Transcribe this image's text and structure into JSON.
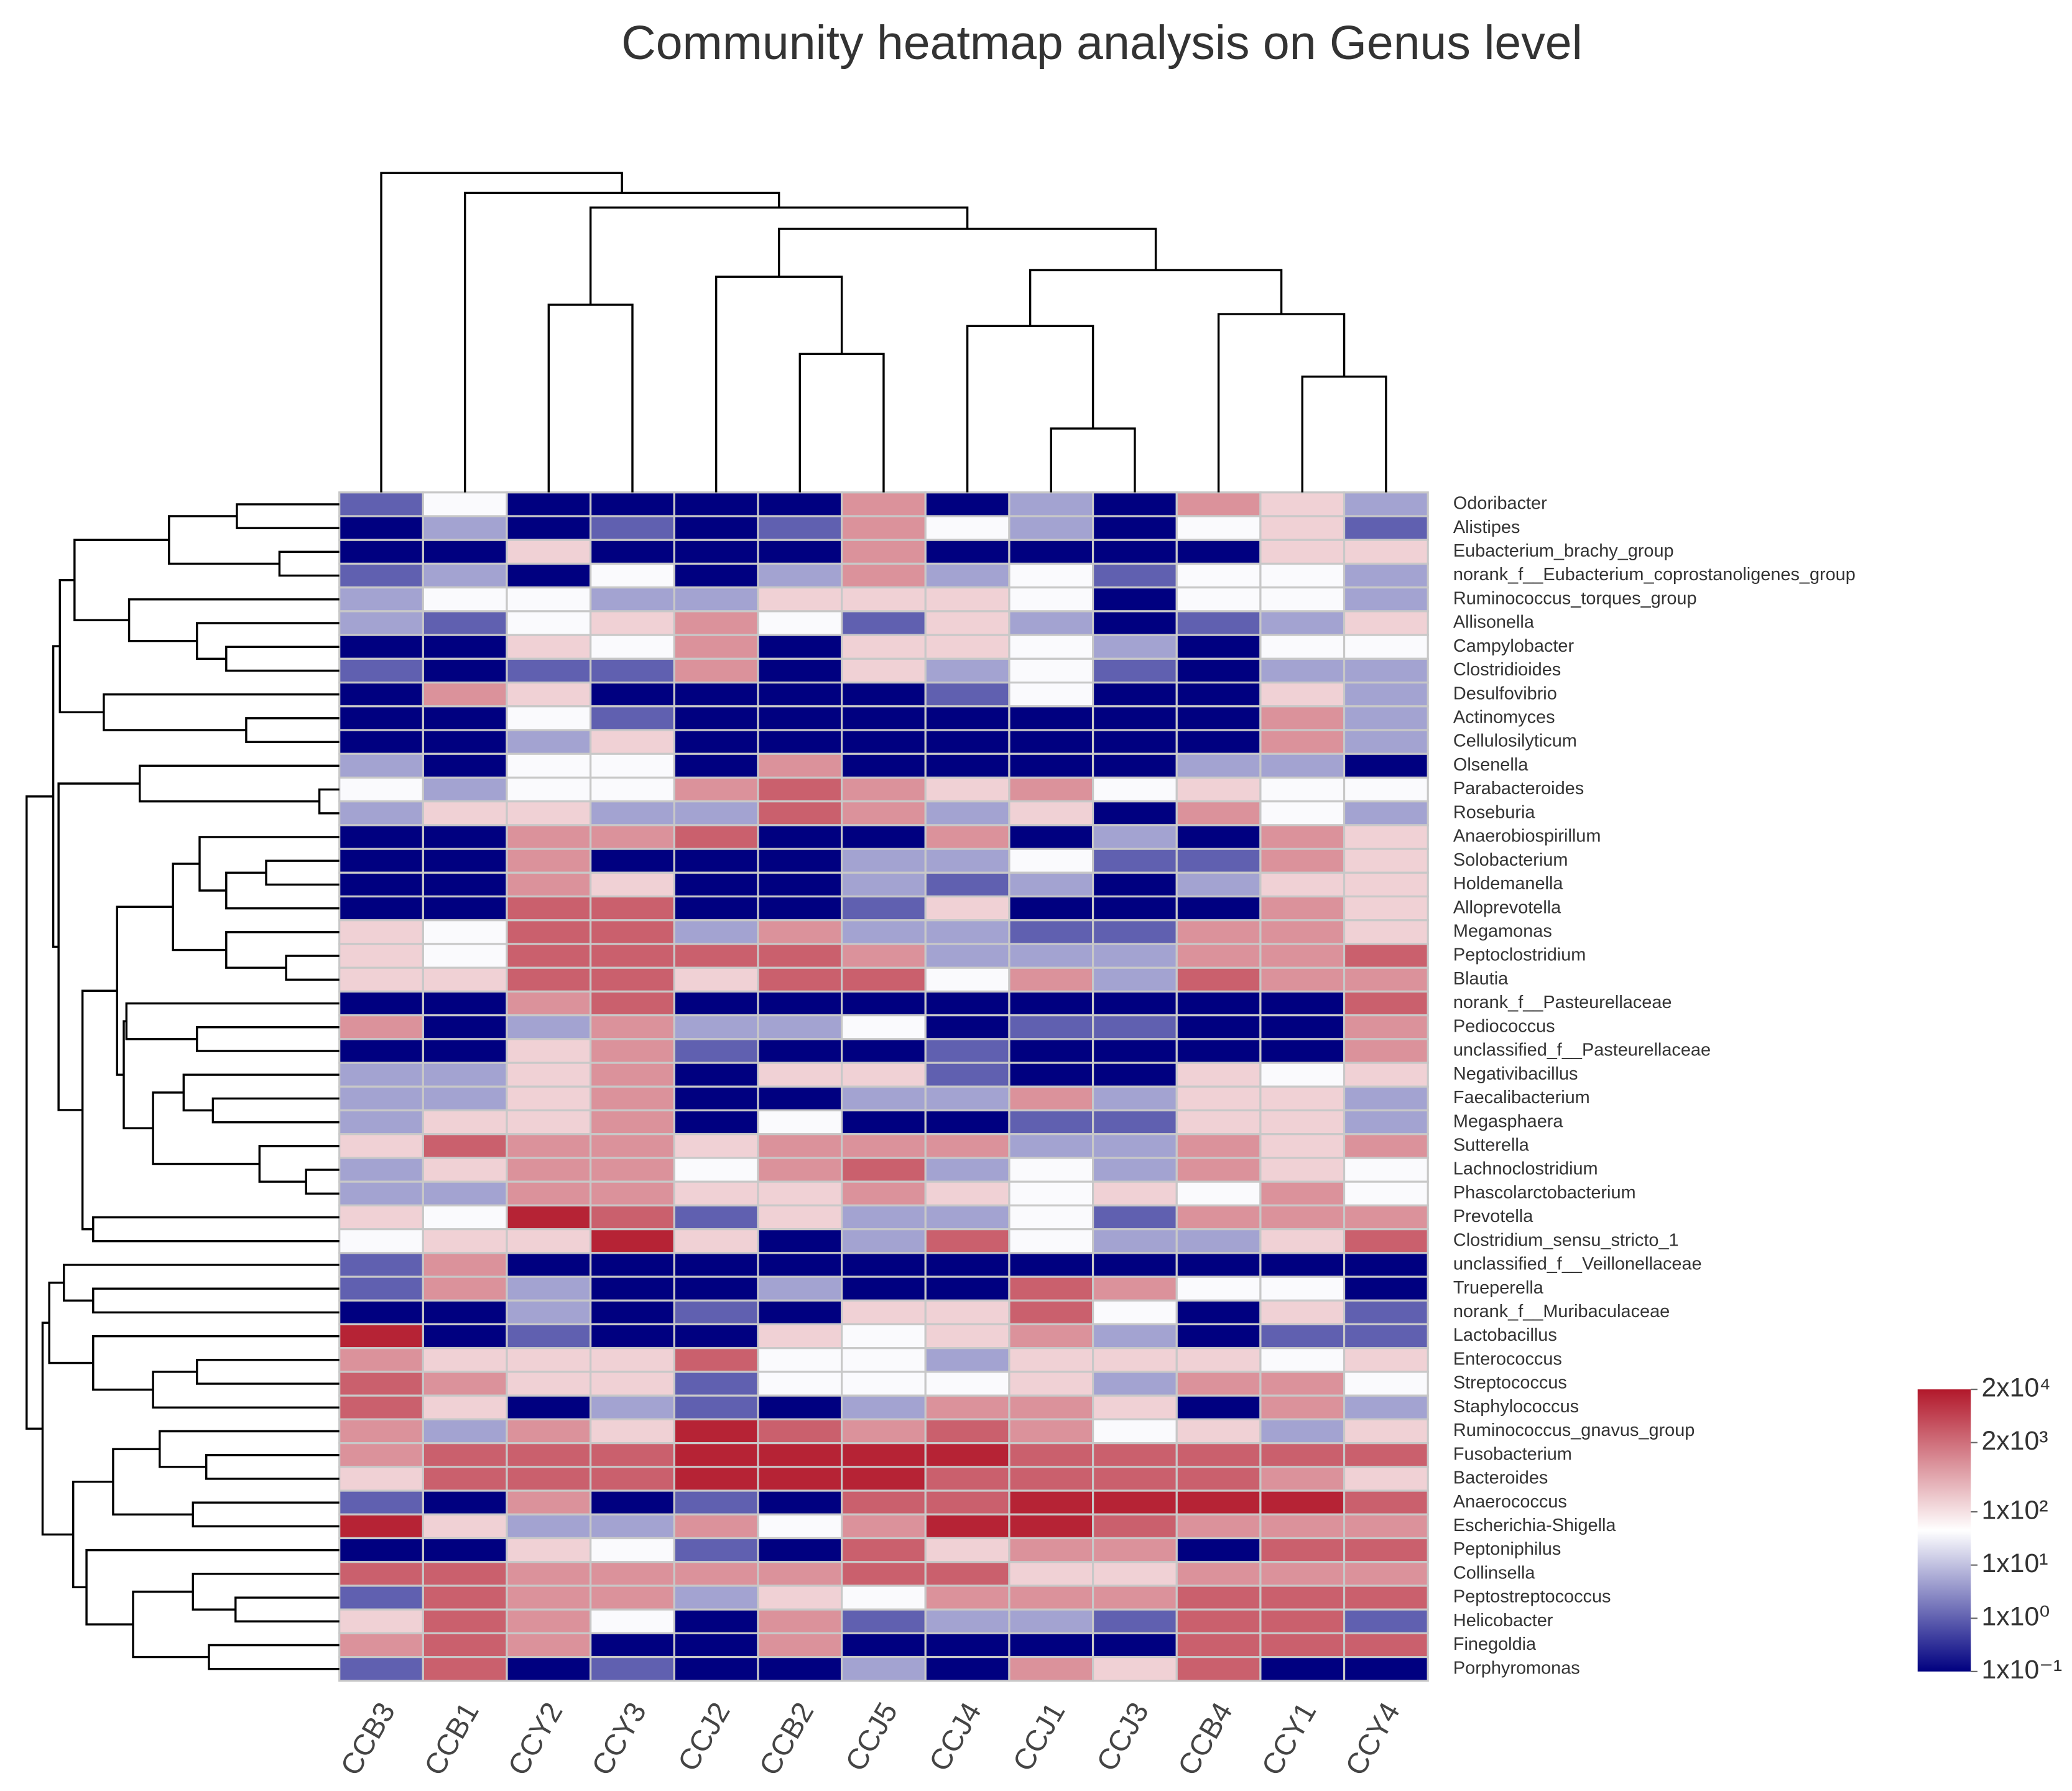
{
  "chart_data": {
    "type": "heatmap",
    "title": "Community heatmap analysis on Genus level",
    "columns": [
      "CCB3",
      "CCB1",
      "CCY2",
      "CCY3",
      "CCJ2",
      "CCB2",
      "CCJ5",
      "CCJ4",
      "CCJ1",
      "CCJ3",
      "CCB4",
      "CCY1",
      "CCY4"
    ],
    "rows": [
      "Odoribacter",
      "Alistipes",
      "Eubacterium_brachy_group",
      "norank_f__Eubacterium_coprostanoligenes_group",
      "Ruminococcus_torques_group",
      "Allisonella",
      "Campylobacter",
      "Clostridioides",
      "Desulfovibrio",
      "Actinomyces",
      "Cellulosilyticum",
      "Olsenella",
      "Parabacteroides",
      "Roseburia",
      "Anaerobiospirillum",
      "Solobacterium",
      "Holdemanella",
      "Alloprevotella",
      "Megamonas",
      "Peptoclostridium",
      "Blautia",
      "norank_f__Pasteurellaceae",
      "Pediococcus",
      "unclassified_f__Pasteurellaceae",
      "Negativibacillus",
      "Faecalibacterium",
      "Megasphaera",
      "Sutterella",
      "Lachnoclostridium",
      "Phascolarctobacterium",
      "Prevotella",
      "Clostridium_sensu_stricto_1",
      "unclassified_f__Veillonellaceae",
      "Trueperella",
      "norank_f__Muribaculaceae",
      "Lactobacillus",
      "Enterococcus",
      "Streptococcus",
      "Staphylococcus",
      "Ruminococcus_gnavus_group",
      "Fusobacterium",
      "Bacteroides",
      "Anaerococcus",
      "Escherichia-Shigella",
      "Peptoniphilus",
      "Collinsella",
      "Peptostreptococcus",
      "Helicobacter",
      "Finegoldia",
      "Porphyromonas"
    ],
    "values": [
      [
        1,
        40,
        0.1,
        0.1,
        0.1,
        0.1,
        800,
        0.1,
        5,
        0.1,
        800,
        150,
        5
      ],
      [
        0.1,
        5,
        0.1,
        1,
        0.1,
        1,
        800,
        40,
        5,
        0.1,
        40,
        150,
        1
      ],
      [
        0.1,
        0.1,
        150,
        0.1,
        0.1,
        0.1,
        800,
        0.1,
        0.1,
        0.1,
        0.1,
        150,
        150
      ],
      [
        1,
        5,
        0.1,
        40,
        0.1,
        5,
        800,
        5,
        40,
        1,
        40,
        40,
        5
      ],
      [
        5,
        40,
        40,
        5,
        5,
        150,
        150,
        150,
        40,
        0.1,
        40,
        40,
        5
      ],
      [
        5,
        1,
        40,
        150,
        800,
        40,
        1,
        150,
        5,
        0.1,
        1,
        5,
        150
      ],
      [
        0.1,
        0.1,
        150,
        40,
        800,
        0.1,
        150,
        150,
        40,
        5,
        0.1,
        40,
        40
      ],
      [
        1,
        0.1,
        1,
        1,
        800,
        0.1,
        150,
        5,
        40,
        1,
        0.1,
        5,
        5
      ],
      [
        0.1,
        800,
        150,
        0.1,
        0.1,
        0.1,
        0.1,
        1,
        40,
        0.1,
        0.1,
        150,
        5
      ],
      [
        0.1,
        0.1,
        40,
        1,
        0.1,
        0.1,
        0.1,
        0.1,
        0.1,
        0.1,
        0.1,
        800,
        5
      ],
      [
        0.1,
        0.1,
        5,
        150,
        0.1,
        0.1,
        0.1,
        0.1,
        0.1,
        0.1,
        0.1,
        800,
        5
      ],
      [
        5,
        0.1,
        40,
        40,
        0.1,
        800,
        0.1,
        0.1,
        0.1,
        0.1,
        5,
        5,
        0.1
      ],
      [
        40,
        5,
        40,
        40,
        800,
        3000,
        800,
        150,
        800,
        40,
        150,
        40,
        40
      ],
      [
        5,
        150,
        150,
        5,
        5,
        3000,
        800,
        5,
        150,
        0.1,
        800,
        40,
        5
      ],
      [
        0.1,
        0.1,
        800,
        800,
        3000,
        0.1,
        0.1,
        800,
        0.1,
        5,
        0.1,
        800,
        150
      ],
      [
        0.1,
        0.1,
        800,
        0.1,
        0.1,
        0.1,
        5,
        5,
        40,
        1,
        1,
        800,
        150
      ],
      [
        0.1,
        0.1,
        800,
        150,
        0.1,
        0.1,
        5,
        1,
        5,
        0.1,
        5,
        150,
        150
      ],
      [
        0.1,
        0.1,
        3000,
        3000,
        0.1,
        0.1,
        1,
        150,
        0.1,
        0.1,
        0.1,
        800,
        150
      ],
      [
        150,
        40,
        3000,
        3000,
        5,
        800,
        5,
        5,
        1,
        1,
        800,
        800,
        150
      ],
      [
        150,
        40,
        3000,
        3000,
        3000,
        3000,
        800,
        5,
        5,
        5,
        800,
        800,
        3000
      ],
      [
        150,
        150,
        3000,
        3000,
        150,
        3000,
        3000,
        40,
        800,
        5,
        3000,
        800,
        800
      ],
      [
        0.1,
        0.1,
        800,
        3000,
        0.1,
        0.1,
        0.1,
        0.1,
        0.1,
        0.1,
        0.1,
        0.1,
        3000
      ],
      [
        800,
        0.1,
        5,
        800,
        5,
        5,
        40,
        0.1,
        1,
        1,
        0.1,
        0.1,
        800
      ],
      [
        0.1,
        0.1,
        150,
        800,
        1,
        0.1,
        0.1,
        1,
        0.1,
        0.1,
        0.1,
        0.1,
        800
      ],
      [
        5,
        5,
        150,
        800,
        0.1,
        150,
        150,
        1,
        0.1,
        0.1,
        150,
        40,
        150
      ],
      [
        5,
        5,
        150,
        800,
        0.1,
        0.1,
        5,
        5,
        800,
        5,
        150,
        150,
        5
      ],
      [
        5,
        150,
        150,
        800,
        0.1,
        40,
        0.1,
        0.1,
        1,
        1,
        150,
        150,
        5
      ],
      [
        150,
        3000,
        800,
        800,
        150,
        800,
        800,
        800,
        5,
        5,
        800,
        150,
        800
      ],
      [
        5,
        150,
        800,
        800,
        40,
        800,
        3000,
        5,
        40,
        5,
        800,
        150,
        40
      ],
      [
        5,
        5,
        800,
        800,
        150,
        150,
        800,
        150,
        40,
        150,
        40,
        800,
        40
      ],
      [
        150,
        40,
        15000,
        3000,
        1,
        150,
        5,
        5,
        40,
        1,
        800,
        800,
        800
      ],
      [
        40,
        150,
        150,
        15000,
        150,
        0.1,
        5,
        3000,
        40,
        5,
        5,
        150,
        3000
      ],
      [
        1,
        800,
        0.1,
        0.1,
        0.1,
        0.1,
        0.1,
        0.1,
        0.1,
        0.1,
        0.1,
        0.1,
        0.1
      ],
      [
        1,
        800,
        5,
        0.1,
        0.1,
        5,
        0.1,
        0.1,
        3000,
        800,
        40,
        40,
        0.1
      ],
      [
        0.1,
        0.1,
        5,
        0.1,
        1,
        0.1,
        150,
        150,
        3000,
        40,
        0.1,
        150,
        1
      ],
      [
        15000,
        0.1,
        1,
        0.1,
        0.1,
        150,
        40,
        150,
        800,
        5,
        0.1,
        1,
        1
      ],
      [
        800,
        150,
        150,
        150,
        3000,
        40,
        40,
        5,
        150,
        150,
        150,
        40,
        150
      ],
      [
        3000,
        800,
        150,
        150,
        1,
        40,
        40,
        40,
        150,
        5,
        800,
        800,
        40
      ],
      [
        3000,
        150,
        0.1,
        5,
        1,
        0.1,
        5,
        800,
        800,
        150,
        0.1,
        800,
        5
      ],
      [
        800,
        5,
        800,
        150,
        15000,
        3000,
        800,
        3000,
        800,
        40,
        150,
        5,
        150
      ],
      [
        800,
        3000,
        3000,
        3000,
        15000,
        15000,
        15000,
        15000,
        3000,
        3000,
        3000,
        3000,
        3000
      ],
      [
        150,
        3000,
        3000,
        3000,
        15000,
        15000,
        15000,
        3000,
        3000,
        3000,
        3000,
        800,
        150
      ],
      [
        1,
        0.1,
        800,
        0.1,
        1,
        0.1,
        3000,
        3000,
        15000,
        15000,
        15000,
        15000,
        3000
      ],
      [
        15000,
        150,
        5,
        5,
        800,
        40,
        800,
        15000,
        15000,
        3000,
        800,
        800,
        800
      ],
      [
        0.1,
        0.1,
        150,
        40,
        1,
        0.1,
        3000,
        150,
        800,
        800,
        0.1,
        3000,
        3000
      ],
      [
        3000,
        3000,
        800,
        800,
        800,
        800,
        3000,
        3000,
        150,
        150,
        800,
        800,
        800
      ],
      [
        1,
        3000,
        800,
        800,
        5,
        150,
        40,
        800,
        800,
        800,
        3000,
        3000,
        3000
      ],
      [
        150,
        3000,
        800,
        40,
        0.1,
        800,
        1,
        5,
        5,
        1,
        3000,
        3000,
        1
      ],
      [
        800,
        3000,
        800,
        0.1,
        0.1,
        800,
        0.1,
        0.1,
        0.1,
        0.1,
        3000,
        3000,
        3000
      ],
      [
        1,
        3000,
        0.1,
        1,
        0.1,
        0.1,
        5,
        0.1,
        800,
        150,
        3000,
        0.1,
        0.1
      ]
    ],
    "log_scale": true,
    "colors": [
      "#000080",
      "#ffffff",
      "#b2182b"
    ],
    "zlim": [
      0.1,
      20000
    ],
    "zticks": [
      {
        "value": 0.1,
        "label": "1x10⁻¹"
      },
      {
        "value": 1,
        "label": "1x10⁰"
      },
      {
        "value": 10,
        "label": "1x10¹"
      },
      {
        "value": 100,
        "label": "1x10²"
      },
      {
        "value": 2000,
        "label": "2x10³"
      },
      {
        "value": 20000,
        "label": "2x10⁴"
      }
    ]
  }
}
